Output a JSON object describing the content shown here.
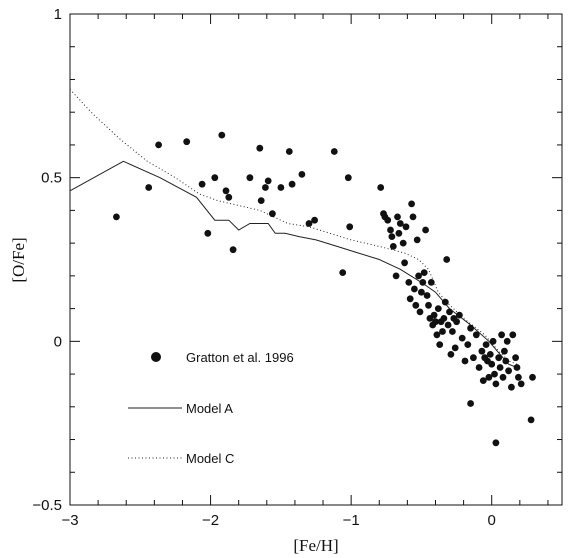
{
  "chart_data": {
    "type": "scatter",
    "xlabel": "[Fe/H]",
    "ylabel": "[O/Fe]",
    "xlim": [
      -3,
      0.5
    ],
    "ylim": [
      -0.5,
      1
    ],
    "x_ticks": [
      -3,
      -2,
      -1,
      0
    ],
    "x_tick_labels": [
      "−3",
      "−2",
      "−1",
      "0"
    ],
    "y_ticks": [
      -0.5,
      0,
      0.5,
      1
    ],
    "y_tick_labels": [
      "−0.5",
      "0",
      "0.5",
      "1"
    ],
    "legend_position": "lower-left",
    "legend": [
      {
        "label": "Gratton et al. 1996",
        "marker": "filled-circle"
      },
      {
        "label": "Model A",
        "line": "solid"
      },
      {
        "label": "Model C",
        "line": "dotted"
      }
    ],
    "series": [
      {
        "name": "Gratton et al. 1996",
        "kind": "points",
        "points": [
          [
            -2.67,
            0.38
          ],
          [
            -2.44,
            0.47
          ],
          [
            -2.37,
            0.6
          ],
          [
            -2.17,
            0.61
          ],
          [
            -2.06,
            0.48
          ],
          [
            -2.02,
            0.33
          ],
          [
            -1.97,
            0.5
          ],
          [
            -1.92,
            0.63
          ],
          [
            -1.89,
            0.46
          ],
          [
            -1.87,
            0.44
          ],
          [
            -1.84,
            0.28
          ],
          [
            -1.72,
            0.5
          ],
          [
            -1.65,
            0.59
          ],
          [
            -1.64,
            0.43
          ],
          [
            -1.61,
            0.47
          ],
          [
            -1.59,
            0.49
          ],
          [
            -1.56,
            0.39
          ],
          [
            -1.5,
            0.47
          ],
          [
            -1.44,
            0.58
          ],
          [
            -1.42,
            0.48
          ],
          [
            -1.35,
            0.51
          ],
          [
            -1.3,
            0.36
          ],
          [
            -1.26,
            0.37
          ],
          [
            -1.12,
            0.58
          ],
          [
            -1.06,
            0.21
          ],
          [
            -1.02,
            0.5
          ],
          [
            -1.01,
            0.35
          ],
          [
            -0.79,
            0.47
          ],
          [
            -0.77,
            0.39
          ],
          [
            -0.76,
            0.38
          ],
          [
            -0.74,
            0.37
          ],
          [
            -0.72,
            0.34
          ],
          [
            -0.71,
            0.32
          ],
          [
            -0.7,
            0.29
          ],
          [
            -0.68,
            0.2
          ],
          [
            -0.67,
            0.38
          ],
          [
            -0.66,
            0.33
          ],
          [
            -0.65,
            0.36
          ],
          [
            -0.63,
            0.3
          ],
          [
            -0.62,
            0.24
          ],
          [
            -0.61,
            0.35
          ],
          [
            -0.59,
            0.18
          ],
          [
            -0.58,
            0.13
          ],
          [
            -0.57,
            0.42
          ],
          [
            -0.56,
            0.38
          ],
          [
            -0.55,
            0.16
          ],
          [
            -0.54,
            0.11
          ],
          [
            -0.53,
            0.31
          ],
          [
            -0.52,
            0.2
          ],
          [
            -0.51,
            0.09
          ],
          [
            -0.5,
            0.15
          ],
          [
            -0.49,
            0.18
          ],
          [
            -0.48,
            0.21
          ],
          [
            -0.47,
            0.34
          ],
          [
            -0.46,
            0.14
          ],
          [
            -0.45,
            0.11
          ],
          [
            -0.44,
            0.07
          ],
          [
            -0.43,
            0.18
          ],
          [
            -0.42,
            0.05
          ],
          [
            -0.41,
            0.08
          ],
          [
            -0.4,
            0.06
          ],
          [
            -0.39,
            0.02
          ],
          [
            -0.38,
            0.1
          ],
          [
            -0.37,
            -0.01
          ],
          [
            -0.36,
            0.06
          ],
          [
            -0.35,
            0.03
          ],
          [
            -0.34,
            0.07
          ],
          [
            -0.33,
            0.12
          ],
          [
            -0.32,
            0.25
          ],
          [
            -0.31,
            0.05
          ],
          [
            -0.3,
            0.09
          ],
          [
            -0.29,
            -0.04
          ],
          [
            -0.28,
            0.03
          ],
          [
            -0.27,
            0.07
          ],
          [
            -0.26,
            -0.02
          ],
          [
            -0.25,
            0.06
          ],
          [
            -0.23,
            0.08
          ],
          [
            -0.21,
            0.01
          ],
          [
            -0.19,
            -0.06
          ],
          [
            -0.17,
            -0.01
          ],
          [
            -0.15,
            0.04
          ],
          [
            -0.13,
            -0.05
          ],
          [
            -0.11,
            0.02
          ],
          [
            -0.09,
            -0.08
          ],
          [
            -0.07,
            -0.03
          ],
          [
            -0.06,
            -0.12
          ],
          [
            -0.05,
            -0.05
          ],
          [
            -0.04,
            -0.01
          ],
          [
            -0.03,
            -0.06
          ],
          [
            -0.02,
            -0.11
          ],
          [
            -0.01,
            -0.04
          ],
          [
            0.0,
            -0.07
          ],
          [
            0.01,
            0.0
          ],
          [
            0.02,
            -0.1
          ],
          [
            0.03,
            -0.13
          ],
          [
            0.05,
            -0.05
          ],
          [
            0.06,
            -0.08
          ],
          [
            0.07,
            0.02
          ],
          [
            0.08,
            -0.11
          ],
          [
            0.09,
            -0.03
          ],
          [
            0.1,
            -0.06
          ],
          [
            0.11,
            0.0
          ],
          [
            0.12,
            -0.09
          ],
          [
            0.14,
            -0.14
          ],
          [
            0.15,
            0.02
          ],
          [
            0.17,
            -0.05
          ],
          [
            0.18,
            -0.08
          ],
          [
            0.19,
            -0.11
          ],
          [
            0.21,
            -0.13
          ],
          [
            0.29,
            -0.11
          ],
          [
            -0.15,
            -0.19
          ],
          [
            0.03,
            -0.31
          ],
          [
            0.28,
            -0.24
          ]
        ]
      },
      {
        "name": "Model A",
        "kind": "line",
        "dash": "solid",
        "points": [
          [
            -3.0,
            0.46
          ],
          [
            -2.62,
            0.55
          ],
          [
            -2.36,
            0.5
          ],
          [
            -2.1,
            0.44
          ],
          [
            -1.97,
            0.37
          ],
          [
            -1.87,
            0.37
          ],
          [
            -1.8,
            0.34
          ],
          [
            -1.72,
            0.36
          ],
          [
            -1.65,
            0.36
          ],
          [
            -1.59,
            0.36
          ],
          [
            -1.54,
            0.33
          ],
          [
            -1.47,
            0.33
          ],
          [
            -1.37,
            0.32
          ],
          [
            -1.25,
            0.31
          ],
          [
            -1.1,
            0.29
          ],
          [
            -0.95,
            0.27
          ],
          [
            -0.8,
            0.25
          ],
          [
            -0.65,
            0.22
          ],
          [
            -0.5,
            0.18
          ],
          [
            -0.4,
            0.15
          ],
          [
            -0.3,
            0.1
          ],
          [
            -0.15,
            0.05
          ],
          [
            -0.02,
            0.0
          ],
          [
            0.06,
            -0.04
          ],
          [
            0.12,
            -0.07
          ],
          [
            0.18,
            -0.08
          ]
        ]
      },
      {
        "name": "Model C",
        "kind": "line",
        "dash": "dotted",
        "points": [
          [
            -3.0,
            0.77
          ],
          [
            -2.85,
            0.7
          ],
          [
            -2.65,
            0.62
          ],
          [
            -2.45,
            0.55
          ],
          [
            -2.25,
            0.5
          ],
          [
            -2.08,
            0.45
          ],
          [
            -1.95,
            0.43
          ],
          [
            -1.85,
            0.42
          ],
          [
            -1.75,
            0.41
          ],
          [
            -1.65,
            0.4
          ],
          [
            -1.55,
            0.38
          ],
          [
            -1.45,
            0.36
          ],
          [
            -1.3,
            0.35
          ],
          [
            -1.15,
            0.33
          ],
          [
            -1.0,
            0.31
          ],
          [
            -0.8,
            0.29
          ],
          [
            -0.62,
            0.27
          ],
          [
            -0.52,
            0.25
          ],
          [
            -0.45,
            0.22
          ],
          [
            -0.38,
            0.15
          ],
          [
            -0.32,
            0.12
          ],
          [
            -0.2,
            0.07
          ],
          [
            -0.05,
            0.02
          ],
          [
            0.05,
            -0.03
          ],
          [
            0.12,
            -0.06
          ],
          [
            0.18,
            -0.07
          ]
        ]
      }
    ]
  }
}
